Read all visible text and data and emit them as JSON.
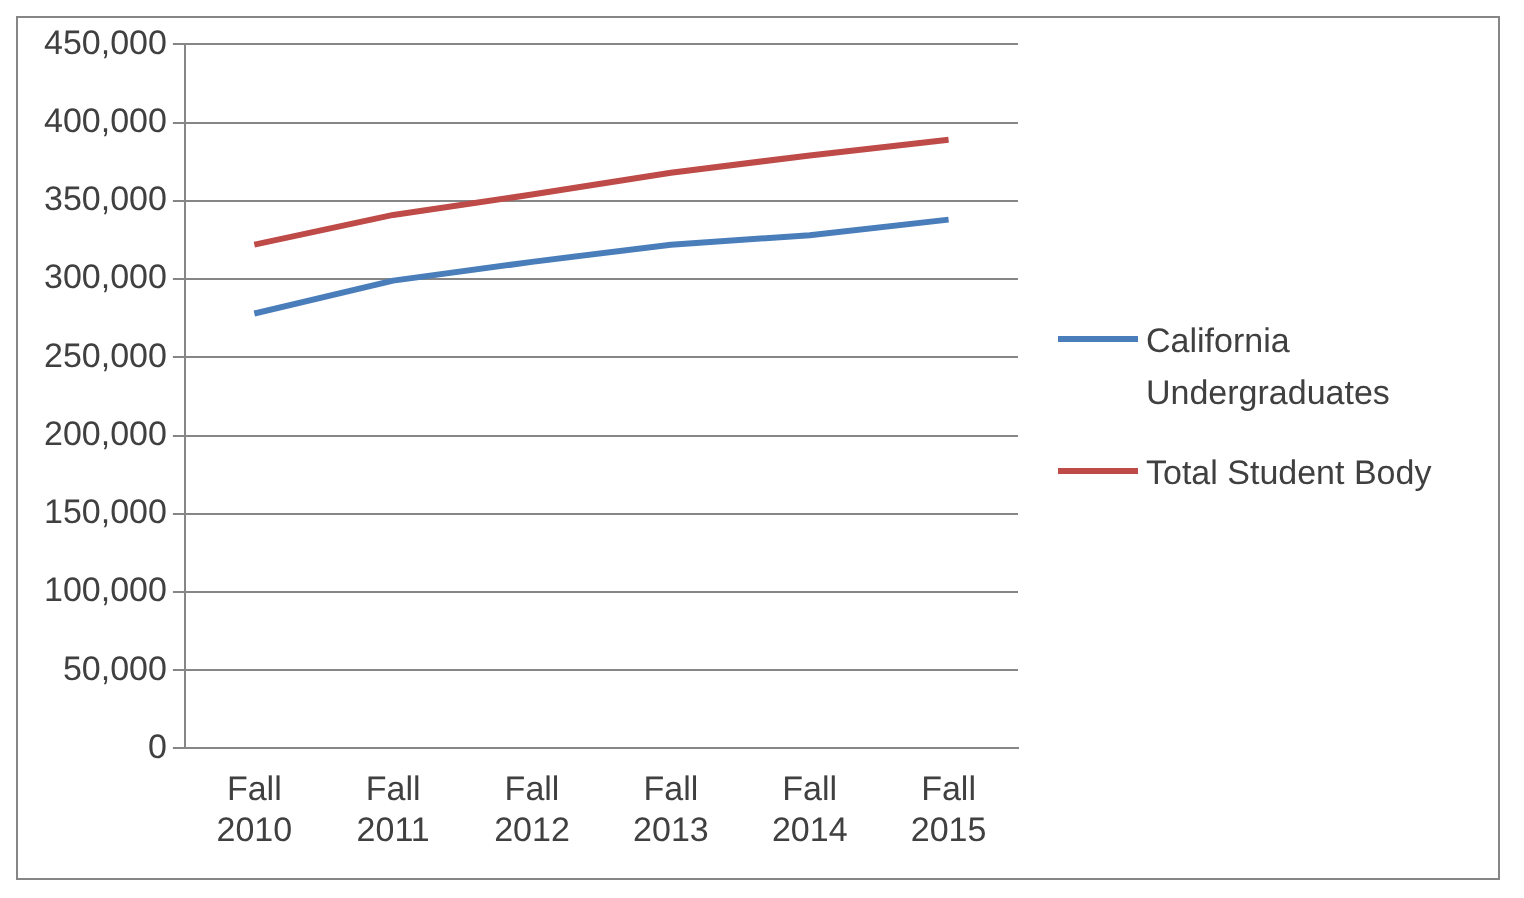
{
  "chart_data": {
    "type": "line",
    "categories": [
      "Fall 2010",
      "Fall 2011",
      "Fall 2012",
      "Fall 2013",
      "Fall 2014",
      "Fall 2015"
    ],
    "series": [
      {
        "name": "California Undergraduates",
        "color": "#4a7ebb",
        "values": [
          278000,
          299000,
          311000,
          322000,
          328000,
          338000
        ]
      },
      {
        "name": "Total Student Body",
        "color": "#be4b48",
        "values": [
          322000,
          341000,
          354000,
          368000,
          379000,
          389000
        ]
      }
    ],
    "ylim": [
      0,
      450000
    ],
    "yticks": [
      {
        "value": 0,
        "label": "0"
      },
      {
        "value": 50000,
        "label": "50,000"
      },
      {
        "value": 100000,
        "label": "100,000"
      },
      {
        "value": 150000,
        "label": "150,000"
      },
      {
        "value": 200000,
        "label": "200,000"
      },
      {
        "value": 250000,
        "label": "250,000"
      },
      {
        "value": 300000,
        "label": "300,000"
      },
      {
        "value": 350000,
        "label": "350,000"
      },
      {
        "value": 400000,
        "label": "400,000"
      },
      {
        "value": 450000,
        "label": "450,000"
      }
    ],
    "grid": "y",
    "legend": "right",
    "marker": "none",
    "line_style": "solid"
  }
}
